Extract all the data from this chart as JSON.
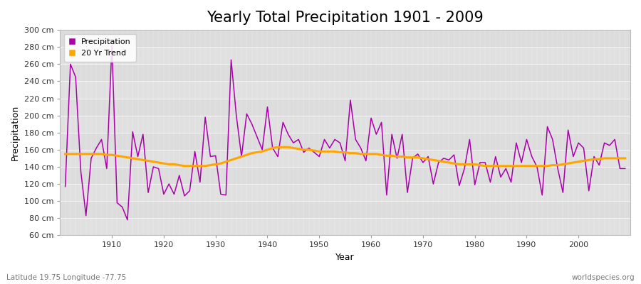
{
  "title": "Yearly Total Precipitation 1901 - 2009",
  "xlabel": "Year",
  "ylabel": "Precipitation",
  "subtitle": "Latitude 19.75 Longitude -77.75",
  "watermark": "worldspecies.org",
  "years": [
    1901,
    1902,
    1903,
    1904,
    1905,
    1906,
    1907,
    1908,
    1909,
    1910,
    1911,
    1912,
    1913,
    1914,
    1915,
    1916,
    1917,
    1918,
    1919,
    1920,
    1921,
    1922,
    1923,
    1924,
    1925,
    1926,
    1927,
    1928,
    1929,
    1930,
    1931,
    1932,
    1933,
    1934,
    1935,
    1936,
    1937,
    1938,
    1939,
    1940,
    1941,
    1942,
    1943,
    1944,
    1945,
    1946,
    1947,
    1948,
    1949,
    1950,
    1951,
    1952,
    1953,
    1954,
    1955,
    1956,
    1957,
    1958,
    1959,
    1960,
    1961,
    1962,
    1963,
    1964,
    1965,
    1966,
    1967,
    1968,
    1969,
    1970,
    1971,
    1972,
    1973,
    1974,
    1975,
    1976,
    1977,
    1978,
    1979,
    1980,
    1981,
    1982,
    1983,
    1984,
    1985,
    1986,
    1987,
    1988,
    1989,
    1990,
    1991,
    1992,
    1993,
    1994,
    1995,
    1996,
    1997,
    1998,
    1999,
    2000,
    2001,
    2002,
    2003,
    2004,
    2005,
    2006,
    2007,
    2008,
    2009
  ],
  "precipitation": [
    117,
    260,
    245,
    135,
    83,
    150,
    162,
    172,
    138,
    282,
    98,
    93,
    78,
    181,
    152,
    178,
    110,
    140,
    138,
    108,
    120,
    108,
    130,
    106,
    112,
    158,
    122,
    198,
    152,
    153,
    108,
    107,
    265,
    200,
    152,
    202,
    190,
    175,
    160,
    210,
    162,
    152,
    192,
    178,
    168,
    172,
    157,
    162,
    157,
    152,
    172,
    162,
    172,
    168,
    147,
    218,
    172,
    162,
    147,
    197,
    178,
    192,
    107,
    178,
    150,
    178,
    110,
    150,
    155,
    145,
    152,
    120,
    145,
    150,
    148,
    154,
    118,
    138,
    172,
    119,
    145,
    145,
    122,
    152,
    128,
    138,
    122,
    168,
    145,
    172,
    152,
    140,
    107,
    187,
    172,
    138,
    110,
    183,
    152,
    168,
    162,
    112,
    152,
    142,
    168,
    165,
    172,
    138,
    138
  ],
  "trend": [
    155,
    155,
    155,
    155,
    155,
    155,
    155,
    155,
    154,
    154,
    153,
    152,
    151,
    150,
    149,
    148,
    147,
    146,
    145,
    144,
    143,
    143,
    142,
    141,
    141,
    141,
    141,
    141,
    142,
    143,
    144,
    146,
    148,
    150,
    152,
    154,
    156,
    157,
    158,
    160,
    162,
    163,
    163,
    163,
    162,
    161,
    160,
    160,
    159,
    158,
    158,
    158,
    158,
    157,
    157,
    156,
    156,
    155,
    155,
    155,
    155,
    154,
    153,
    153,
    152,
    152,
    151,
    151,
    151,
    150,
    149,
    148,
    147,
    146,
    145,
    144,
    143,
    143,
    143,
    143,
    142,
    141,
    141,
    141,
    141,
    141,
    141,
    141,
    141,
    141,
    141,
    141,
    141,
    141,
    142,
    142,
    143,
    144,
    145,
    146,
    147,
    148,
    149,
    149,
    150,
    150,
    150,
    150,
    150
  ],
  "precip_color": "#AA00AA",
  "trend_color": "#FFA500",
  "bg_color": "#FFFFFF",
  "plot_bg_color": "#EBEBEB",
  "band_color_light": "#E8E8E8",
  "band_color_dark": "#DCDCDC",
  "ylim": [
    60,
    300
  ],
  "yticks": [
    60,
    80,
    100,
    120,
    140,
    160,
    180,
    200,
    220,
    240,
    260,
    280,
    300
  ],
  "xticks": [
    1910,
    1920,
    1930,
    1940,
    1950,
    1960,
    1970,
    1980,
    1990,
    2000
  ],
  "title_fontsize": 15,
  "label_fontsize": 9,
  "tick_fontsize": 8,
  "legend_fontsize": 8
}
